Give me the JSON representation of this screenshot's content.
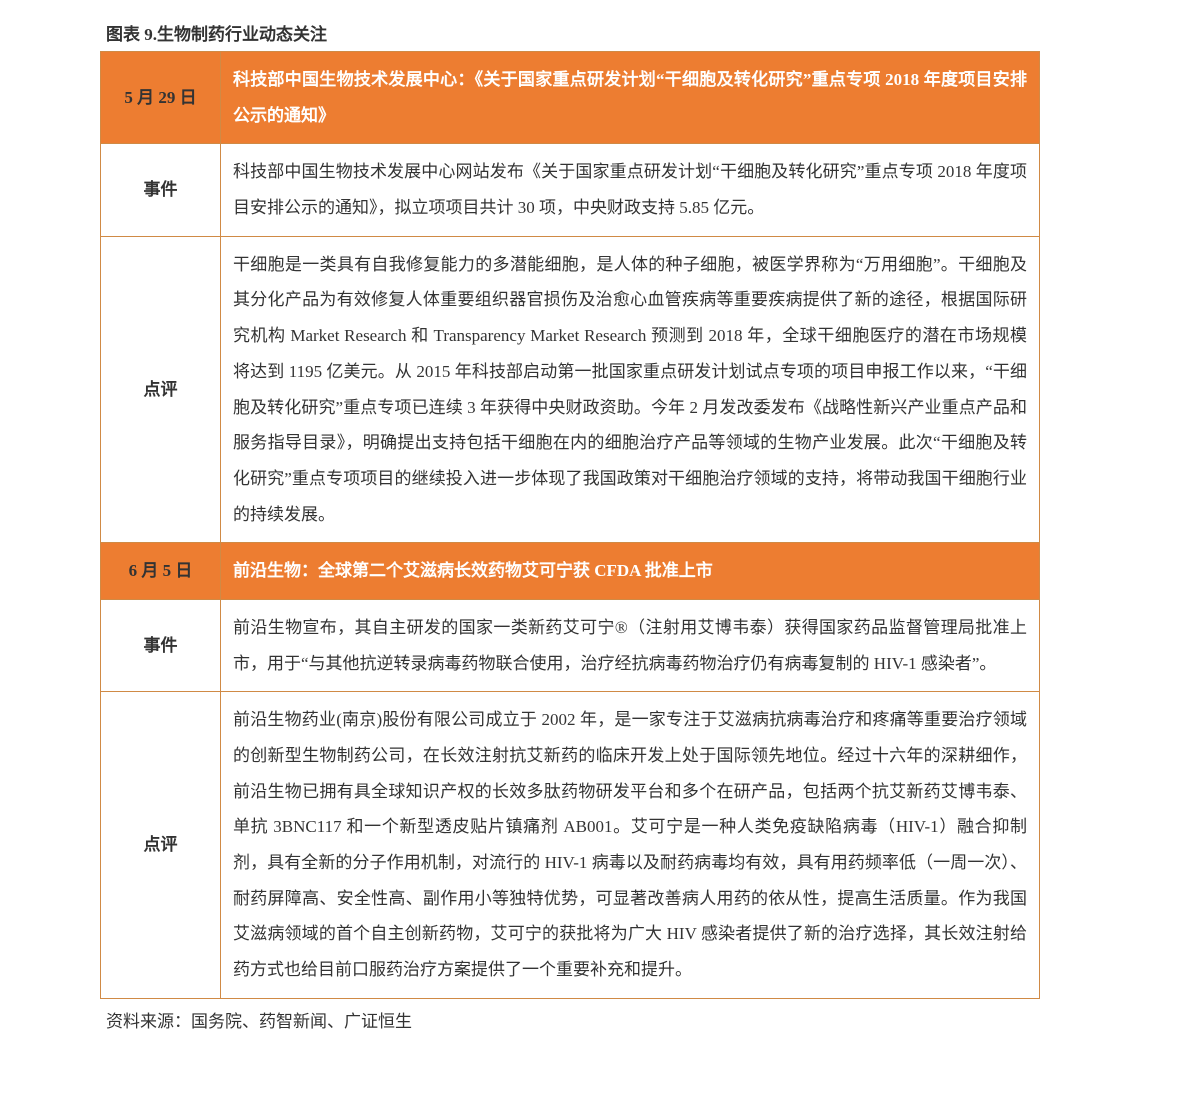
{
  "caption": "图表 9.生物制药行业动态关注",
  "table": {
    "colors": {
      "header_bg": "#ed7d31",
      "header_text": "#ffffff",
      "header_label_text": "#333333",
      "border": "#d08a45",
      "body_text": "#333333",
      "page_bg": "#ffffff"
    },
    "column_widths": {
      "label": 120
    },
    "fontsize": 17,
    "line_height": 2.1,
    "rows": [
      {
        "type": "header",
        "label": "5 月 29 日",
        "content": "科技部中国生物技术发展中心：《关于国家重点研发计划“干细胞及转化研究”重点专项 2018 年度项目安排公示的通知》"
      },
      {
        "type": "body",
        "label": "事件",
        "content": "科技部中国生物技术发展中心网站发布《关于国家重点研发计划“干细胞及转化研究”重点专项 2018 年度项目安排公示的通知》，拟立项项目共计 30 项，中央财政支持 5.85 亿元。"
      },
      {
        "type": "body",
        "label": "点评",
        "content": "干细胞是一类具有自我修复能力的多潜能细胞，是人体的种子细胞，被医学界称为“万用细胞”。干细胞及其分化产品为有效修复人体重要组织器官损伤及治愈心血管疾病等重要疾病提供了新的途径，根据国际研究机构 Market Research 和 Transparency Market Research 预测到 2018 年，全球干细胞医疗的潜在市场规模将达到 1195 亿美元。从 2015 年科技部启动第一批国家重点研发计划试点专项的项目申报工作以来，“干细胞及转化研究”重点专项已连续 3 年获得中央财政资助。今年 2 月发改委发布《战略性新兴产业重点产品和服务指导目录》，明确提出支持包括干细胞在内的细胞治疗产品等领域的生物产业发展。此次“干细胞及转化研究”重点专项项目的继续投入进一步体现了我国政策对干细胞治疗领域的支持，将带动我国干细胞行业的持续发展。"
      },
      {
        "type": "header",
        "label": "6 月 5 日",
        "content": "前沿生物：全球第二个艾滋病长效药物艾可宁获 CFDA 批准上市"
      },
      {
        "type": "body",
        "label": "事件",
        "content": "前沿生物宣布，其自主研发的国家一类新药艾可宁®（注射用艾博韦泰）获得国家药品监督管理局批准上市，用于“与其他抗逆转录病毒药物联合使用，治疗经抗病毒药物治疗仍有病毒复制的 HIV-1 感染者”。"
      },
      {
        "type": "body",
        "label": "点评",
        "content": "前沿生物药业(南京)股份有限公司成立于 2002 年，是一家专注于艾滋病抗病毒治疗和疼痛等重要治疗领域的创新型生物制药公司，在长效注射抗艾新药的临床开发上处于国际领先地位。经过十六年的深耕细作，前沿生物已拥有具全球知识产权的长效多肽药物研发平台和多个在研产品，包括两个抗艾新药艾博韦泰、单抗 3BNC117 和一个新型透皮贴片镇痛剂 AB001。艾可宁是一种人类免疫缺陷病毒（HIV-1）融合抑制剂，具有全新的分子作用机制，对流行的 HIV-1 病毒以及耐药病毒均有效，具有用药频率低（一周一次）、耐药屏障高、安全性高、副作用小等独特优势，可显著改善病人用药的依从性，提高生活质量。作为我国艾滋病领域的首个自主创新药物，艾可宁的获批将为广大 HIV 感染者提供了新的治疗选择，其长效注射给药方式也给目前口服药治疗方案提供了一个重要补充和提升。"
      }
    ]
  },
  "source_note": "资料来源：国务院、药智新闻、广证恒生"
}
